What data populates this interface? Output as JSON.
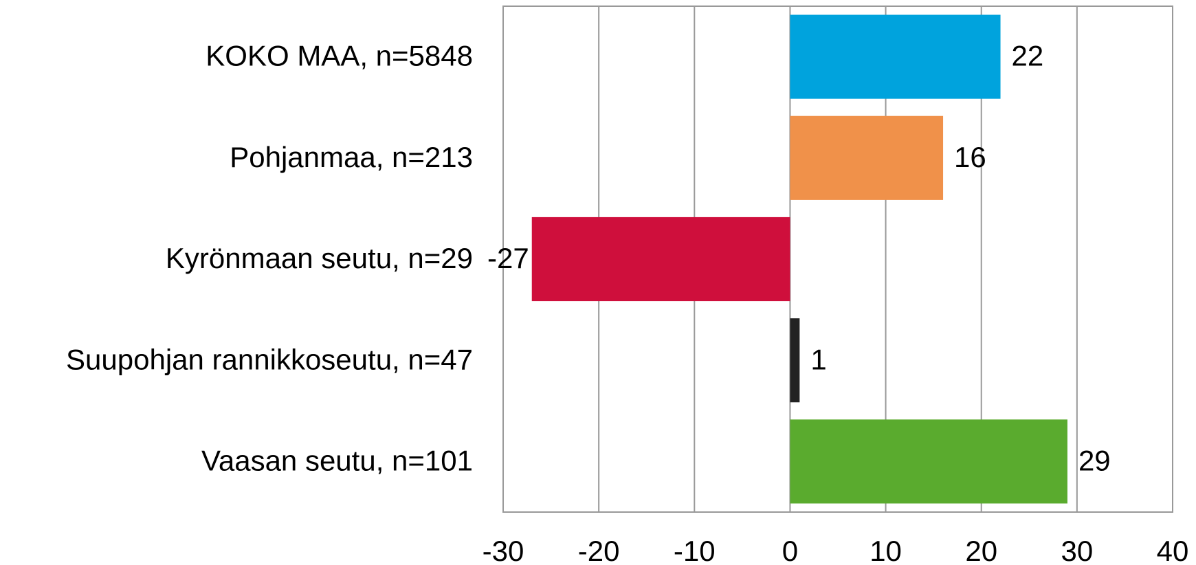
{
  "chart_data": {
    "type": "barh",
    "categories": [
      "KOKO MAA, n=5848",
      "Pohjanmaa, n=213",
      "Kyrönmaan seutu, n=29",
      "Suupohjan rannikkoseutu, n=47",
      "Vaasan seutu, n=101"
    ],
    "values": [
      22,
      16,
      -27,
      1,
      29
    ],
    "colors": [
      "#00a3dd",
      "#f0914a",
      "#cf0f3c",
      "#222222",
      "#5aab2e"
    ],
    "xlim": [
      -30,
      40
    ],
    "xticks": [
      -30,
      -20,
      -10,
      0,
      10,
      20,
      30,
      40
    ],
    "grid": true
  }
}
